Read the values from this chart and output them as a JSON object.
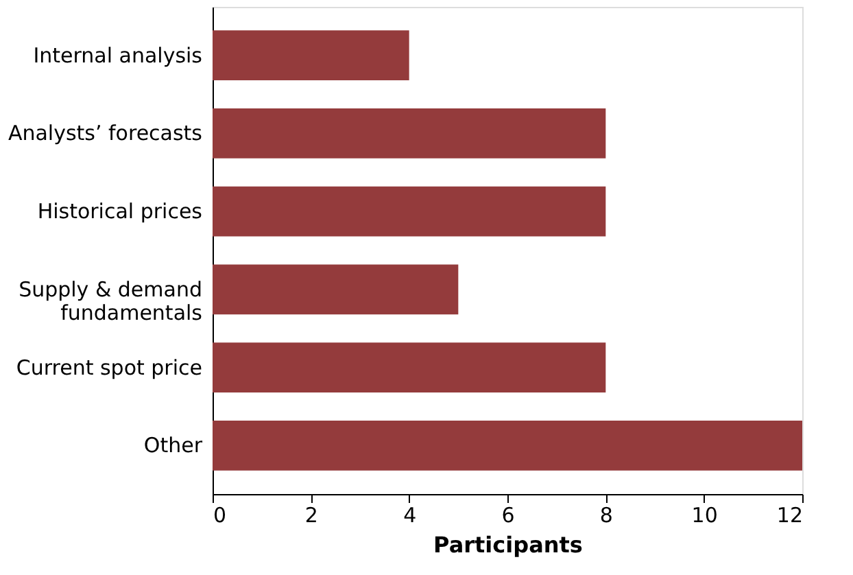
{
  "chart_data": {
    "type": "bar",
    "orientation": "horizontal",
    "categories": [
      "Internal analysis",
      "Analysts’ forecasts",
      "Historical prices",
      "Supply & demand\nfundamentals",
      "Current spot price",
      "Other"
    ],
    "values": [
      4,
      8,
      8,
      5,
      8,
      12
    ],
    "color": "#943b3c",
    "xlabel": "Participants",
    "xlim": [
      0,
      12
    ],
    "xticks": [
      0,
      2,
      4,
      6,
      8,
      10,
      12
    ],
    "grid": false
  }
}
